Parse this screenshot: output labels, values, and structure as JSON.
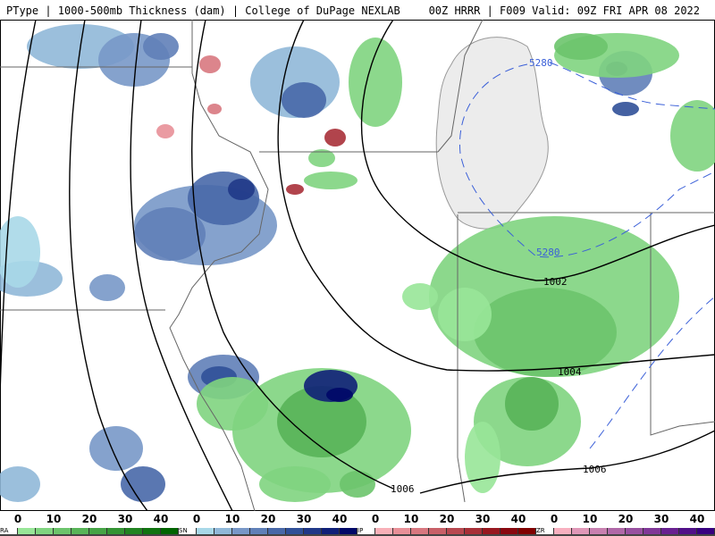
{
  "header": {
    "left": "PType | 1000-500mb Thickness (dam) | College of DuPage NEXLAB",
    "right": "00Z HRRR | F009 Valid: 09Z FRI APR 08 2022"
  },
  "contour_labels": {
    "c1002": "1002",
    "c1004": "1004",
    "c1006a": "1006",
    "c1006b": "1006",
    "t5280a": "5280",
    "t5280b": "5280"
  },
  "colors": {
    "contour": "#000000",
    "thickness": "#3a5fd8",
    "state_border": "#666666",
    "lake": "#ececec"
  },
  "legend": [
    {
      "label": "RA",
      "ticks": [
        "0",
        "10",
        "20",
        "30",
        "40"
      ],
      "colors": [
        "#98e698",
        "#80d480",
        "#6cc46c",
        "#58b458",
        "#46a446",
        "#349434",
        "#228422",
        "#117411",
        "#006400"
      ]
    },
    {
      "label": "SN",
      "ticks": [
        "0",
        "10",
        "20",
        "30",
        "40"
      ],
      "colors": [
        "#a8d8e8",
        "#90b8d8",
        "#7898c8",
        "#6080b8",
        "#4868a8",
        "#305098",
        "#203888",
        "#102078",
        "#000868"
      ]
    },
    {
      "label": "IP",
      "ticks": [
        "0",
        "10",
        "20",
        "30",
        "40"
      ],
      "colors": [
        "#f8b0b8",
        "#e89098",
        "#d87880",
        "#c86068",
        "#b84850",
        "#a83038",
        "#981820",
        "#880810",
        "#800000"
      ]
    },
    {
      "label": "ZR",
      "ticks": [
        "0",
        "10",
        "20",
        "30",
        "40"
      ],
      "colors": [
        "#f8b0c0",
        "#e098b8",
        "#c880b0",
        "#b068a8",
        "#9850a0",
        "#803898",
        "#682090",
        "#501088",
        "#380080"
      ]
    }
  ]
}
